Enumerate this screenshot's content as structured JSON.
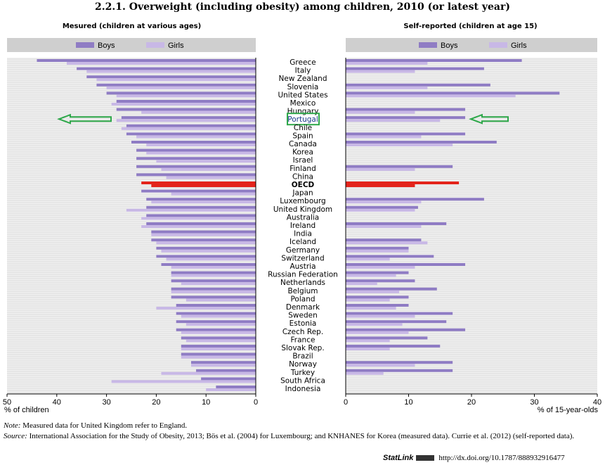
{
  "header": {
    "title": "2.2.1.  Overweight (including obesity) among children, 2010 (or latest year)",
    "left_subtitle": "Mesured (children at various ages)",
    "right_subtitle": "Self-reported (children at age 15)"
  },
  "legend": {
    "boys": "Boys",
    "girls": "Girls"
  },
  "colors": {
    "boys": "#8f7cc4",
    "girls": "#c8b8e6",
    "oecd": "#e3241b",
    "highlight": "#2ea84a",
    "panel_bg": "#f0f0f0",
    "panel_stripe": "#dcdcdc",
    "legend_bg": "#cfcfcf"
  },
  "chart_data": [
    {
      "type": "bar",
      "orientation": "horizontal",
      "title": "Mesured (children at various ages)",
      "xlabel": "% of children",
      "xlim": [
        50,
        0
      ],
      "xticks": [
        50,
        40,
        30,
        20,
        10,
        0
      ],
      "categories": [
        "Greece",
        "Italy",
        "New Zealand",
        "Slovenia",
        "United States",
        "Mexico",
        "Hungary",
        "Portugal",
        "Chile",
        "Spain",
        "Canada",
        "Korea",
        "Israel",
        "Finland",
        "China",
        "OECD",
        "Japan",
        "Luxembourg",
        "United Kingdom",
        "Australia",
        "Ireland",
        "India",
        "Iceland",
        "Germany",
        "Switzerland",
        "Austria",
        "Russian Federation",
        "Netherlands",
        "Belgium",
        "Poland",
        "Denmark",
        "Sweden",
        "Estonia",
        "Czech Rep.",
        "France",
        "Slovak Rep.",
        "Brazil",
        "Norway",
        "Turkey",
        "South Africa",
        "Indonesia"
      ],
      "series": [
        {
          "name": "Boys",
          "values": [
            44,
            36,
            34,
            32,
            30,
            28,
            28,
            27,
            26,
            26,
            25,
            24,
            24,
            24,
            24,
            23,
            23,
            22,
            22,
            22,
            22,
            21,
            21,
            20,
            20,
            19,
            17,
            17,
            17,
            17,
            16,
            16,
            16,
            16,
            15,
            15,
            15,
            13,
            12,
            11,
            8
          ]
        },
        {
          "name": "Girls",
          "values": [
            38,
            34,
            32,
            30,
            28,
            29,
            23,
            28,
            27,
            24,
            22,
            22,
            20,
            19,
            18,
            21,
            17,
            21,
            26,
            23,
            23,
            21,
            20,
            19,
            18,
            17,
            17,
            15,
            17,
            14,
            20,
            15,
            14,
            15,
            14,
            15,
            15,
            13,
            19,
            29,
            10
          ]
        }
      ],
      "highlight": "Portugal",
      "reference": "OECD"
    },
    {
      "type": "bar",
      "orientation": "horizontal",
      "title": "Self-reported (children at age 15)",
      "xlabel": "% of 15-year-olds",
      "xlim": [
        0,
        40
      ],
      "xticks": [
        0,
        10,
        20,
        30,
        40
      ],
      "categories": [
        "Greece",
        "Italy",
        "New Zealand",
        "Slovenia",
        "United States",
        "Mexico",
        "Hungary",
        "Portugal",
        "Chile",
        "Spain",
        "Canada",
        "Korea",
        "Israel",
        "Finland",
        "China",
        "OECD",
        "Japan",
        "Luxembourg",
        "United Kingdom",
        "Australia",
        "Ireland",
        "India",
        "Iceland",
        "Germany",
        "Switzerland",
        "Austria",
        "Russian Federation",
        "Netherlands",
        "Belgium",
        "Poland",
        "Denmark",
        "Sweden",
        "Estonia",
        "Czech Rep.",
        "France",
        "Slovak Rep.",
        "Brazil",
        "Norway",
        "Turkey",
        "South Africa",
        "Indonesia"
      ],
      "series": [
        {
          "name": "Boys",
          "values": [
            28,
            22,
            null,
            23,
            34,
            null,
            19,
            19,
            null,
            19,
            24,
            null,
            null,
            17,
            null,
            18,
            null,
            22,
            11.5,
            null,
            16,
            null,
            12,
            10,
            14,
            19,
            10,
            11,
            14.5,
            10,
            10,
            17,
            16,
            19,
            13,
            15,
            null,
            17,
            17,
            null,
            null
          ]
        },
        {
          "name": "Girls",
          "values": [
            13,
            11,
            null,
            13,
            27,
            null,
            11,
            15,
            null,
            12,
            17,
            null,
            null,
            11,
            null,
            11,
            null,
            12,
            11,
            null,
            12,
            null,
            13,
            10,
            7,
            11,
            8,
            5,
            8.5,
            7,
            8,
            11,
            9,
            10,
            7,
            7,
            null,
            11,
            6,
            null,
            null
          ]
        }
      ],
      "highlight": "Portugal",
      "reference": "OECD"
    }
  ],
  "footer": {
    "note_label": "Note:",
    "note_text": " Measured data for United Kingdom refer to England.",
    "source_label": "Source:",
    "source_text": "  International Association for the Study of Obesity, 2013; Bös et al. (2004) for Luxembourg; and KNHANES for Korea (measured data). Currie et al. (2012) (self-reported data).",
    "statlink_label": "StatLink",
    "statlink_url": "http://dx.doi.org/10.1787/888932916477"
  }
}
